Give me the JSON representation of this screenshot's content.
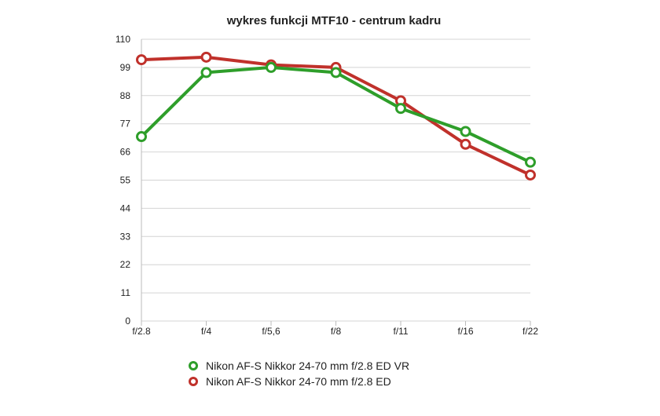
{
  "chart_data": {
    "type": "line",
    "title": "wykres funkcji MTF10 - centrum kadru",
    "categories": [
      "f/2.8",
      "f/4",
      "f/5,6",
      "f/8",
      "f/11",
      "f/16",
      "f/22"
    ],
    "yticks": [
      "0",
      "11",
      "22",
      "33",
      "44",
      "55",
      "66",
      "77",
      "88",
      "99",
      "110"
    ],
    "ylim": [
      0,
      110
    ],
    "grid": true,
    "legend": "bottom",
    "series": [
      {
        "name": "Nikon AF-S Nikkor 24-70 mm f/2.8 ED VR",
        "color": "#2e9e2a",
        "values": [
          72,
          97,
          99,
          97,
          83,
          74,
          62
        ]
      },
      {
        "name": "Nikon AF-S Nikkor 24-70 mm f/2.8 ED",
        "color": "#c0312b",
        "values": [
          102,
          103,
          100,
          99,
          86,
          69,
          57
        ]
      }
    ]
  }
}
